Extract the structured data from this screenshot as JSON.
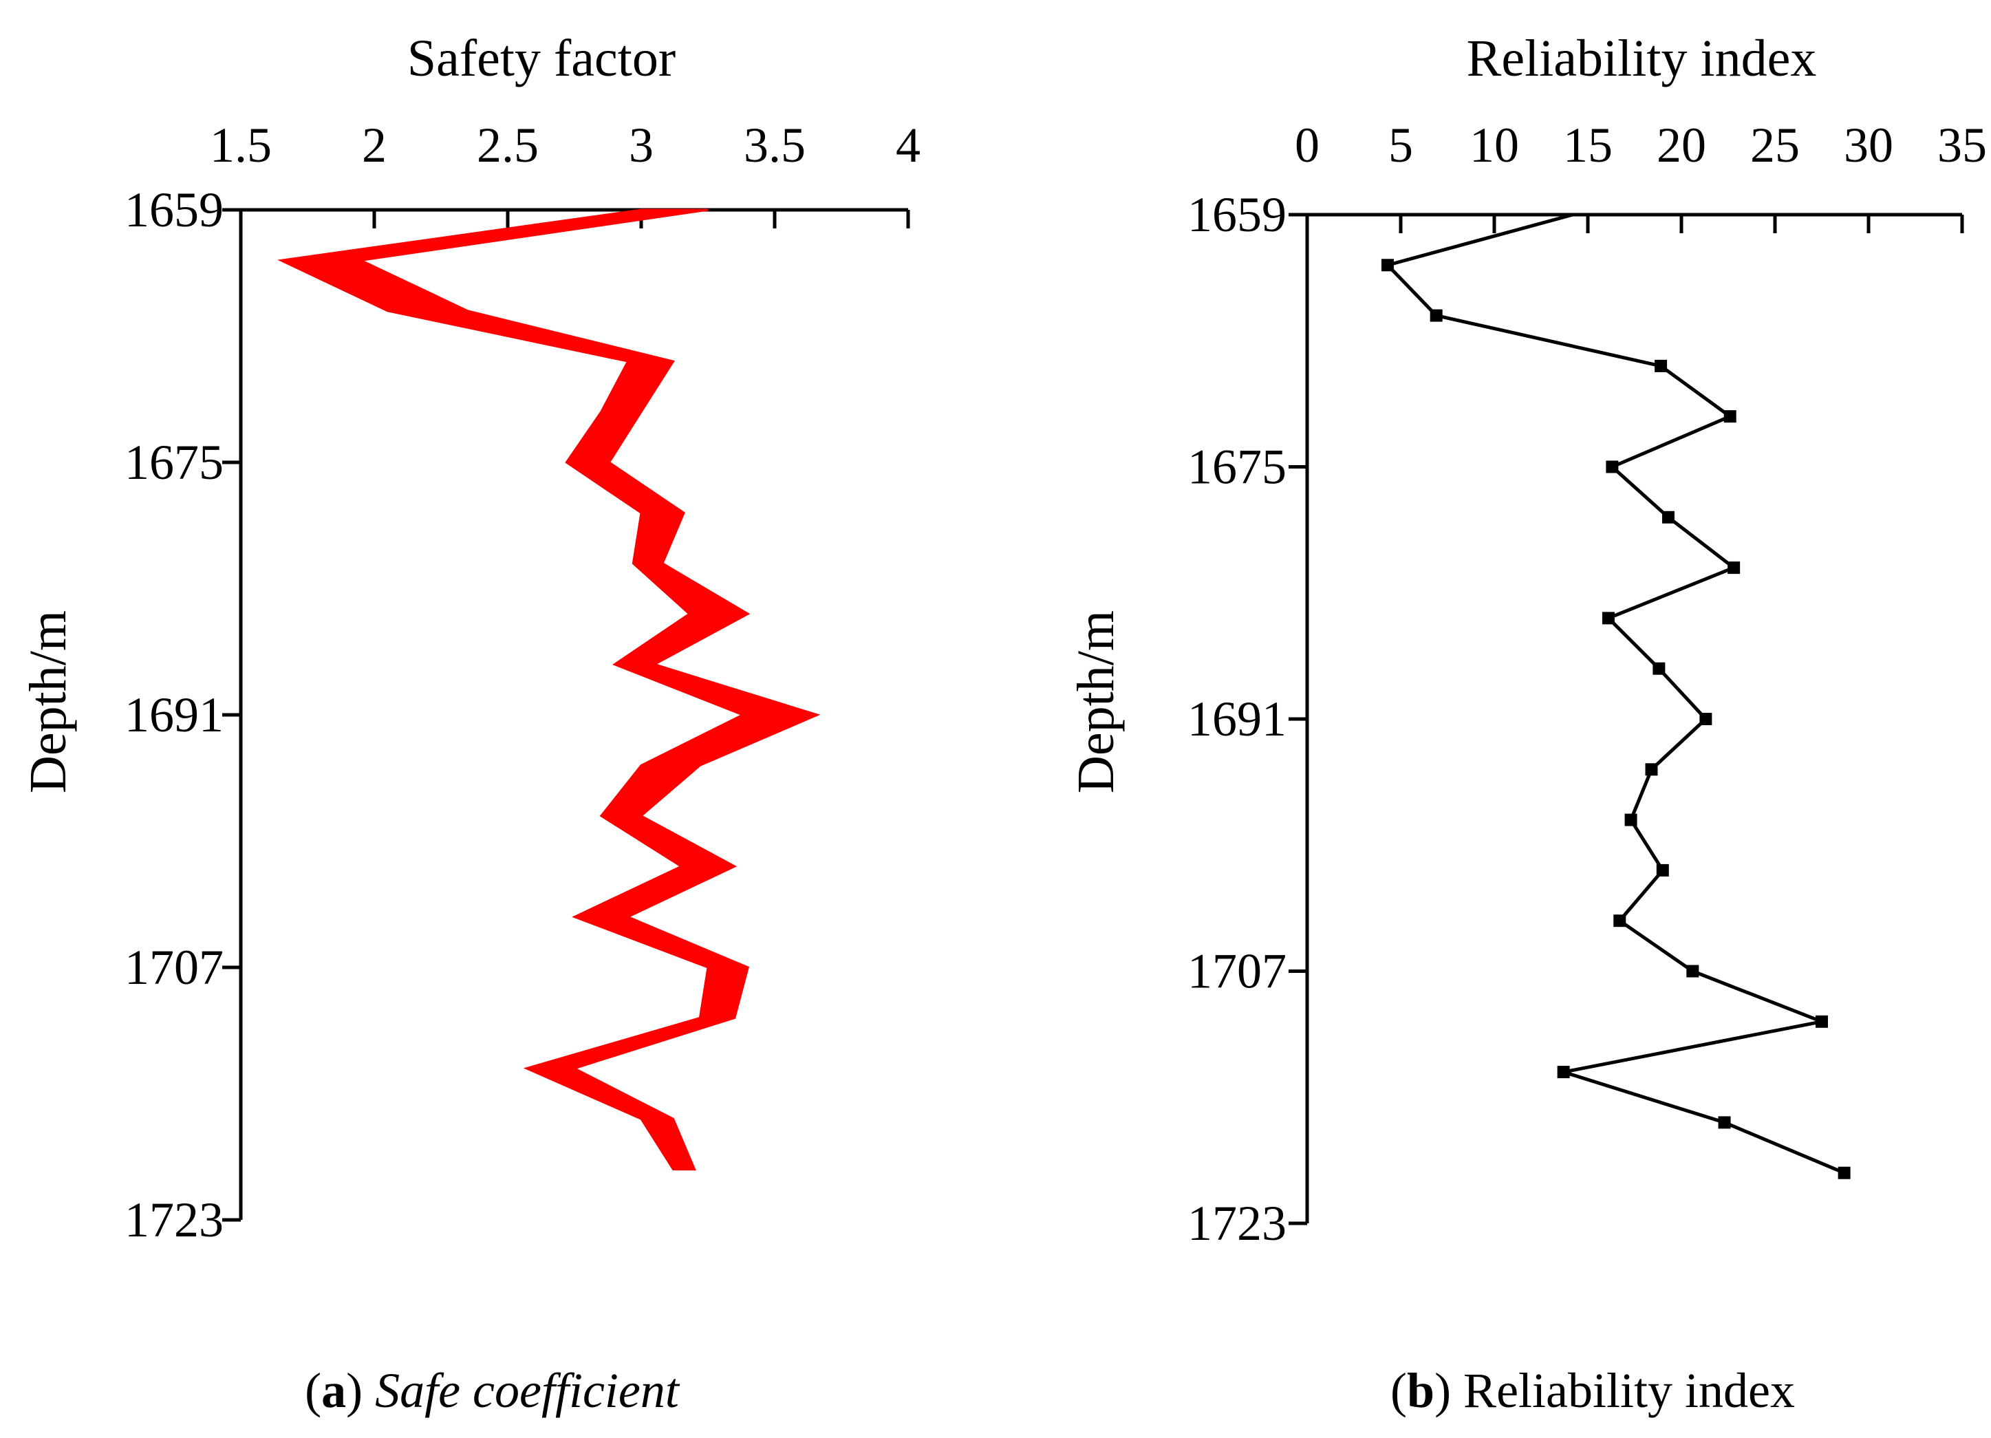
{
  "chart_data": [
    {
      "type": "area",
      "title": "Safety factor",
      "ylabel": "Depth/m",
      "caption": {
        "label": "a",
        "text": "Safe coefficient"
      },
      "xlim": [
        1.5,
        4
      ],
      "ylim": [
        1659,
        1723
      ],
      "x_ticks": [
        "1.5",
        "2",
        "2.5",
        "3",
        "3.5",
        "4"
      ],
      "y_ticks": [
        "1659",
        "1675",
        "1691",
        "1707",
        "1723"
      ],
      "series_color": "#ff0000",
      "depth": [
        1659,
        1662.2,
        1665.4,
        1668.6,
        1671.8,
        1675,
        1678.2,
        1681.4,
        1684.6,
        1687.8,
        1691,
        1694.2,
        1697.4,
        1700.6,
        1703.8,
        1707,
        1710.2,
        1713.4,
        1716.6,
        1719.8
      ],
      "series": [
        {
          "name": "lower",
          "values": [
            3.0,
            1.65,
            2.05,
            2.95,
            2.85,
            2.72,
            3.0,
            2.97,
            3.18,
            2.9,
            3.38,
            3.0,
            2.85,
            3.15,
            2.75,
            3.25,
            3.22,
            2.57,
            3.0,
            3.12
          ]
        },
        {
          "name": "upper",
          "values": [
            3.25,
            1.95,
            2.35,
            3.12,
            3.0,
            2.88,
            3.16,
            3.08,
            3.4,
            3.05,
            3.66,
            3.22,
            3.0,
            3.35,
            2.95,
            3.4,
            3.35,
            2.75,
            3.12,
            3.2
          ]
        }
      ]
    },
    {
      "type": "line",
      "title": "Reliability index",
      "ylabel": "Depth/m",
      "caption": {
        "label": "b",
        "text": "Reliability index"
      },
      "xlim": [
        0,
        35
      ],
      "ylim": [
        1659,
        1723
      ],
      "x_ticks": [
        "0",
        "5",
        "10",
        "15",
        "20",
        "25",
        "30",
        "35"
      ],
      "y_ticks": [
        "1659",
        "1675",
        "1691",
        "1707",
        "1723"
      ],
      "series_color": "#000000",
      "depth": [
        1659,
        1662.2,
        1665.4,
        1668.6,
        1671.8,
        1675,
        1678.2,
        1681.4,
        1684.6,
        1687.8,
        1691,
        1694.2,
        1697.4,
        1700.6,
        1703.8,
        1707,
        1710.2,
        1713.4,
        1716.6,
        1719.8
      ],
      "series": [
        {
          "name": "Reliability index",
          "marker_start": 1,
          "values": [
            14.2,
            4.3,
            6.9,
            18.9,
            22.6,
            16.3,
            19.3,
            22.8,
            16.1,
            18.8,
            21.3,
            18.4,
            17.3,
            19.0,
            16.7,
            20.6,
            27.5,
            13.7,
            22.3,
            28.7
          ]
        }
      ]
    }
  ]
}
